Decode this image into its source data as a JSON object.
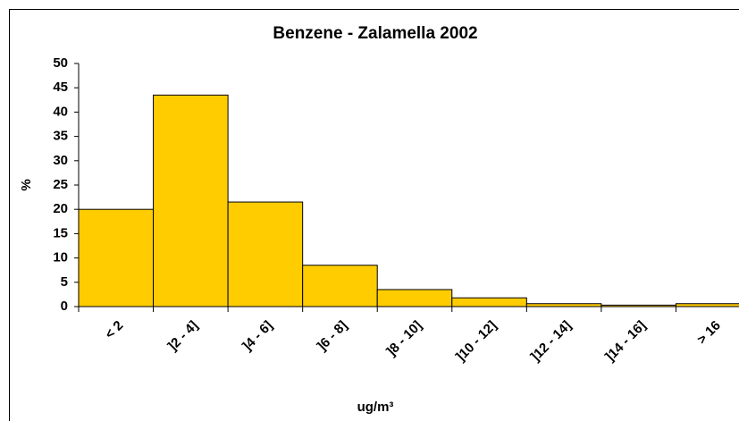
{
  "chart_data": {
    "type": "bar",
    "title": "Benzene - Zalamella 2002",
    "xlabel": "ug/m³",
    "ylabel": "%",
    "categories": [
      "< 2",
      "]2 - 4]",
      "]4 - 6]",
      "]6 - 8]",
      "]8 - 10]",
      "]10 - 12]",
      "]12 - 14]",
      "]14 - 16]",
      "> 16"
    ],
    "values": [
      20,
      43.5,
      21.5,
      8.5,
      3.5,
      1.8,
      0.6,
      0.3,
      0.6
    ],
    "color": "#ffcc00",
    "ylim": [
      0,
      50
    ],
    "yticks": [
      0,
      5,
      10,
      15,
      20,
      25,
      30,
      35,
      40,
      45,
      50
    ],
    "grid": false
  }
}
